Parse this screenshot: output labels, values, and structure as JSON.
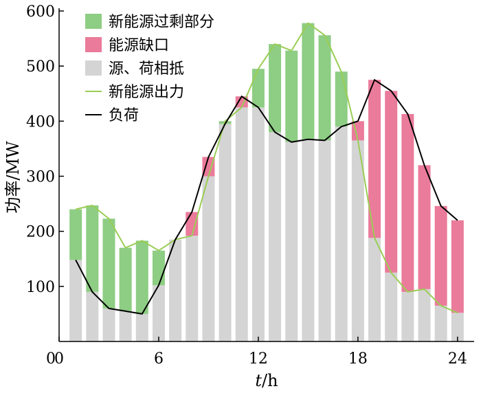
{
  "chart_data": {
    "type": "bar",
    "xlabel_prefix": "t",
    "xlabel_suffix": "/h",
    "ylabel": "功率/MW",
    "xlim": [
      0,
      25
    ],
    "ylim": [
      0,
      600
    ],
    "xticks": [
      0,
      6,
      12,
      18,
      24
    ],
    "yticks": [
      100,
      200,
      300,
      400,
      500,
      600
    ],
    "legend_position": "top-left",
    "colors": {
      "surplus": "#8ecd84",
      "gap": "#ea7b9b",
      "offset": "#d4d4d4",
      "renewable_line": "#9acd55",
      "load_line": "#000000"
    },
    "legend": [
      {
        "key": "surplus",
        "label": "新能源过剩部分"
      },
      {
        "key": "gap",
        "label": "能源缺口"
      },
      {
        "key": "offset",
        "label": "源、荷相抵"
      },
      {
        "key": "renewable_line",
        "label": "新能源出力"
      },
      {
        "key": "load_line",
        "label": "负荷"
      }
    ],
    "hours": [
      1,
      2,
      3,
      4,
      5,
      6,
      7,
      8,
      9,
      10,
      11,
      12,
      13,
      14,
      15,
      16,
      17,
      18,
      19,
      20,
      21,
      22,
      23,
      24
    ],
    "renewable_output": [
      240,
      247,
      223,
      170,
      183,
      165,
      185,
      192,
      300,
      400,
      425,
      495,
      540,
      528,
      578,
      556,
      490,
      365,
      188,
      125,
      90,
      95,
      65,
      52
    ],
    "load": [
      148,
      90,
      60,
      55,
      50,
      102,
      185,
      235,
      335,
      395,
      445,
      425,
      380,
      362,
      367,
      365,
      390,
      400,
      475,
      455,
      413,
      320,
      246,
      220
    ]
  }
}
